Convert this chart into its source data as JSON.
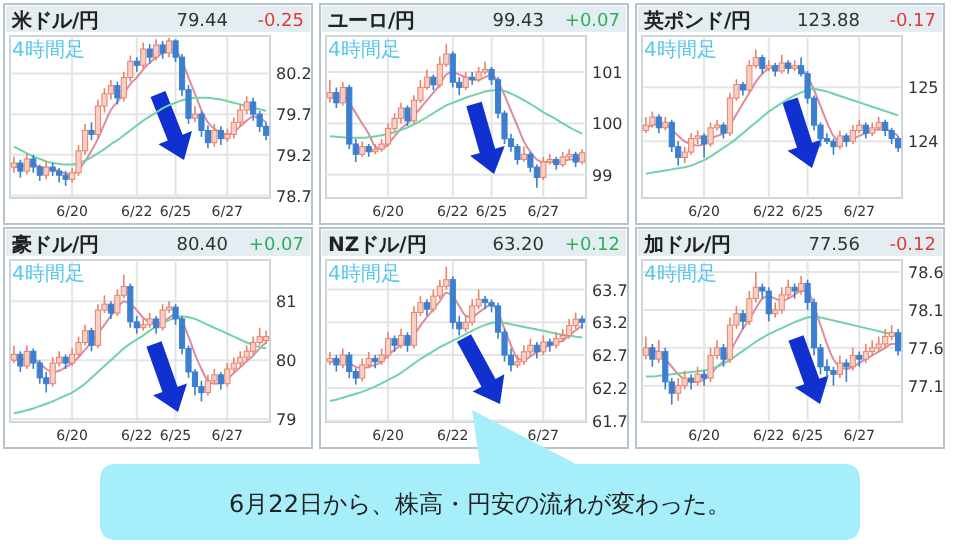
{
  "chart_data": [
    {
      "type": "candlestick",
      "title": "米ドル/円",
      "annotations": [
        "79.44",
        "-0.25",
        "4時間足"
      ],
      "grid": true,
      "ylim": [
        78.67,
        80.66
      ],
      "yticks": [
        78.7,
        79.2,
        79.7,
        80.2
      ],
      "categories": [
        null,
        null,
        null,
        null,
        null,
        null,
        null,
        null,
        null,
        "6/20",
        null,
        null,
        null,
        null,
        null,
        null,
        null,
        null,
        null,
        "6/22",
        null,
        null,
        null,
        null,
        null,
        "6/25",
        null,
        null,
        null,
        null,
        null,
        null,
        null,
        "6/27",
        null,
        null,
        null,
        null,
        null,
        null
      ],
      "ohlc": [
        [
          79.05,
          79.18,
          78.98,
          79.1
        ],
        [
          79.1,
          79.14,
          78.92,
          79.0
        ],
        [
          79.0,
          79.22,
          78.96,
          79.15
        ],
        [
          79.15,
          79.2,
          78.98,
          79.05
        ],
        [
          79.05,
          79.08,
          78.88,
          78.95
        ],
        [
          78.95,
          79.12,
          78.9,
          79.05
        ],
        [
          79.05,
          79.1,
          78.94,
          79.0
        ],
        [
          79.0,
          79.04,
          78.86,
          78.95
        ],
        [
          78.95,
          79.0,
          78.82,
          78.9
        ],
        [
          78.9,
          79.04,
          78.86,
          78.98
        ],
        [
          78.98,
          79.32,
          78.94,
          79.25
        ],
        [
          79.25,
          79.58,
          79.2,
          79.5
        ],
        [
          79.5,
          79.6,
          79.38,
          79.45
        ],
        [
          79.45,
          79.88,
          79.4,
          79.8
        ],
        [
          79.8,
          80.02,
          79.72,
          79.95
        ],
        [
          79.95,
          80.12,
          79.88,
          80.05
        ],
        [
          80.05,
          80.1,
          79.82,
          79.9
        ],
        [
          79.9,
          80.22,
          79.86,
          80.15
        ],
        [
          80.15,
          80.42,
          80.1,
          80.35
        ],
        [
          80.35,
          80.4,
          80.22,
          80.3
        ],
        [
          80.3,
          80.58,
          80.26,
          80.5
        ],
        [
          80.5,
          80.56,
          80.32,
          80.4
        ],
        [
          80.4,
          80.62,
          80.36,
          80.55
        ],
        [
          80.55,
          80.6,
          80.38,
          80.45
        ],
        [
          80.45,
          80.64,
          80.4,
          80.6
        ],
        [
          80.6,
          80.62,
          80.34,
          80.4
        ],
        [
          80.4,
          80.44,
          79.92,
          80.0
        ],
        [
          80.0,
          80.06,
          79.58,
          79.65
        ],
        [
          79.65,
          79.8,
          79.6,
          79.7
        ],
        [
          79.7,
          79.74,
          79.42,
          79.5
        ],
        [
          79.5,
          79.56,
          79.28,
          79.35
        ],
        [
          79.35,
          79.58,
          79.3,
          79.5
        ],
        [
          79.5,
          79.55,
          79.32,
          79.4
        ],
        [
          79.4,
          79.52,
          79.36,
          79.45
        ],
        [
          79.45,
          79.66,
          79.4,
          79.6
        ],
        [
          79.6,
          79.82,
          79.55,
          79.75
        ],
        [
          79.75,
          79.92,
          79.7,
          79.85
        ],
        [
          79.85,
          79.9,
          79.62,
          79.7
        ],
        [
          79.7,
          79.74,
          79.48,
          79.55
        ],
        [
          79.55,
          79.6,
          79.38,
          79.44
        ]
      ],
      "series": [
        {
          "type": "line",
          "color": "#dd8ca0",
          "values": [
            79.05,
            79.05,
            79.08,
            79.08,
            79.05,
            79.04,
            79.02,
            79.0,
            78.97,
            78.96,
            79.02,
            79.12,
            79.25,
            79.4,
            79.58,
            79.75,
            79.85,
            79.95,
            80.07,
            80.15,
            80.25,
            80.33,
            80.4,
            80.45,
            80.5,
            80.48,
            80.35,
            80.15,
            79.95,
            79.75,
            79.6,
            79.52,
            79.48,
            79.45,
            79.48,
            79.55,
            79.62,
            79.67,
            79.65,
            79.6
          ]
        },
        {
          "type": "line",
          "color": "#6fd3a6",
          "values": [
            79.3,
            79.26,
            79.22,
            79.18,
            79.15,
            79.12,
            79.1,
            79.09,
            79.08,
            79.08,
            79.1,
            79.13,
            79.17,
            79.22,
            79.27,
            79.33,
            79.38,
            79.44,
            79.5,
            79.56,
            79.62,
            79.67,
            79.72,
            79.77,
            79.81,
            79.84,
            79.87,
            79.89,
            79.9,
            79.9,
            79.9,
            79.89,
            79.88,
            79.86,
            79.84,
            79.82,
            79.8,
            79.78,
            79.76,
            79.74
          ]
        }
      ]
    },
    {
      "type": "candlestick",
      "title": "ユーロ/円",
      "annotations": [
        "99.43",
        "+0.07",
        "4時間足"
      ],
      "grid": true,
      "ylim": [
        98.55,
        101.7
      ],
      "yticks": [
        99,
        100,
        101
      ],
      "categories": [
        null,
        null,
        null,
        null,
        null,
        null,
        null,
        null,
        null,
        "6/20",
        null,
        null,
        null,
        null,
        null,
        null,
        null,
        null,
        null,
        "6/22",
        null,
        null,
        null,
        null,
        null,
        "6/25",
        null,
        null,
        null,
        null,
        null,
        null,
        null,
        "6/27",
        null,
        null,
        null,
        null,
        null,
        null
      ],
      "ohlc": [
        [
          100.5,
          100.85,
          100.4,
          100.6
        ],
        [
          100.6,
          100.7,
          100.3,
          100.4
        ],
        [
          100.4,
          100.8,
          100.35,
          100.7
        ],
        [
          100.7,
          100.75,
          99.5,
          99.6
        ],
        [
          99.6,
          99.7,
          99.25,
          99.4
        ],
        [
          99.4,
          99.65,
          99.35,
          99.55
        ],
        [
          99.55,
          99.6,
          99.35,
          99.45
        ],
        [
          99.45,
          99.6,
          99.4,
          99.5
        ],
        [
          99.5,
          99.7,
          99.45,
          99.6
        ],
        [
          99.6,
          100.0,
          99.55,
          99.9
        ],
        [
          99.9,
          100.2,
          99.85,
          100.1
        ],
        [
          100.1,
          100.4,
          100.0,
          100.3
        ],
        [
          100.3,
          100.35,
          99.95,
          100.05
        ],
        [
          100.05,
          100.55,
          100.0,
          100.45
        ],
        [
          100.45,
          100.85,
          100.4,
          100.7
        ],
        [
          100.7,
          101.05,
          100.65,
          100.9
        ],
        [
          100.9,
          100.95,
          100.65,
          100.75
        ],
        [
          100.75,
          101.3,
          100.7,
          101.15
        ],
        [
          101.15,
          101.55,
          101.1,
          101.35
        ],
        [
          101.35,
          101.4,
          100.7,
          100.8
        ],
        [
          100.8,
          100.9,
          100.55,
          100.7
        ],
        [
          100.7,
          101.0,
          100.65,
          100.9
        ],
        [
          100.9,
          101.0,
          100.75,
          100.85
        ],
        [
          100.85,
          101.1,
          100.8,
          101.0
        ],
        [
          101.0,
          101.2,
          100.95,
          101.05
        ],
        [
          101.05,
          101.1,
          100.75,
          100.85
        ],
        [
          100.85,
          100.9,
          100.1,
          100.2
        ],
        [
          100.2,
          100.25,
          99.6,
          99.7
        ],
        [
          99.7,
          99.8,
          99.45,
          99.55
        ],
        [
          99.55,
          99.6,
          99.2,
          99.3
        ],
        [
          99.3,
          99.55,
          99.25,
          99.4
        ],
        [
          99.4,
          99.45,
          99.05,
          99.15
        ],
        [
          99.15,
          99.2,
          98.75,
          98.95
        ],
        [
          98.95,
          99.35,
          98.9,
          99.25
        ],
        [
          99.25,
          99.4,
          99.2,
          99.3
        ],
        [
          99.3,
          99.35,
          99.1,
          99.2
        ],
        [
          99.2,
          99.45,
          99.15,
          99.35
        ],
        [
          99.35,
          99.5,
          99.3,
          99.4
        ],
        [
          99.4,
          99.45,
          99.15,
          99.25
        ],
        [
          99.25,
          99.5,
          99.2,
          99.43
        ]
      ],
      "series": [
        {
          "type": "line",
          "color": "#dd8ca0",
          "values": [
            100.5,
            100.5,
            100.55,
            100.4,
            100.2,
            100.0,
            99.8,
            99.55,
            99.5,
            99.6,
            99.75,
            99.9,
            100.0,
            100.15,
            100.3,
            100.45,
            100.6,
            100.75,
            100.95,
            101.0,
            100.95,
            100.9,
            100.85,
            100.85,
            100.9,
            100.95,
            100.8,
            100.55,
            100.25,
            99.95,
            99.65,
            99.45,
            99.3,
            99.25,
            99.25,
            99.25,
            99.25,
            99.3,
            99.3,
            99.33
          ]
        },
        {
          "type": "line",
          "color": "#6fd3a6",
          "values": [
            99.75,
            99.74,
            99.73,
            99.72,
            99.72,
            99.72,
            99.73,
            99.75,
            99.77,
            99.8,
            99.83,
            99.87,
            99.92,
            99.98,
            100.05,
            100.12,
            100.2,
            100.28,
            100.35,
            100.4,
            100.45,
            100.5,
            100.54,
            100.58,
            100.62,
            100.64,
            100.65,
            100.63,
            100.58,
            100.52,
            100.45,
            100.38,
            100.3,
            100.22,
            100.15,
            100.08,
            100.0,
            99.93,
            99.86,
            99.8
          ]
        }
      ]
    },
    {
      "type": "candlestick",
      "title": "英ポンド/円",
      "annotations": [
        "123.88",
        "-0.17",
        "4時間足"
      ],
      "grid": true,
      "ylim": [
        122.95,
        125.95
      ],
      "yticks": [
        124,
        125
      ],
      "categories": [
        null,
        null,
        null,
        null,
        null,
        null,
        null,
        null,
        null,
        "6/20",
        null,
        null,
        null,
        null,
        null,
        null,
        null,
        null,
        null,
        "6/22",
        null,
        null,
        null,
        null,
        null,
        "6/25",
        null,
        null,
        null,
        null,
        null,
        null,
        null,
        "6/27",
        null,
        null,
        null,
        null,
        null,
        null
      ],
      "ohlc": [
        [
          124.2,
          124.45,
          124.15,
          124.3
        ],
        [
          124.3,
          124.55,
          124.25,
          124.45
        ],
        [
          124.45,
          124.5,
          124.15,
          124.25
        ],
        [
          124.25,
          124.45,
          124.2,
          124.35
        ],
        [
          124.35,
          124.4,
          123.8,
          123.9
        ],
        [
          123.9,
          124.0,
          123.55,
          123.7
        ],
        [
          123.7,
          123.9,
          123.6,
          123.8
        ],
        [
          123.8,
          124.15,
          123.75,
          124.05
        ],
        [
          124.05,
          124.2,
          123.95,
          124.1
        ],
        [
          124.1,
          124.15,
          123.7,
          123.95
        ],
        [
          123.95,
          124.35,
          123.9,
          124.25
        ],
        [
          124.25,
          124.4,
          124.2,
          124.3
        ],
        [
          124.3,
          124.35,
          124.05,
          124.15
        ],
        [
          124.15,
          124.9,
          124.1,
          124.8
        ],
        [
          124.8,
          125.15,
          124.75,
          125.05
        ],
        [
          125.05,
          125.1,
          124.85,
          124.95
        ],
        [
          124.95,
          125.5,
          124.9,
          125.4
        ],
        [
          125.4,
          125.7,
          125.35,
          125.55
        ],
        [
          125.55,
          125.6,
          125.25,
          125.35
        ],
        [
          125.35,
          125.5,
          125.3,
          125.4
        ],
        [
          125.4,
          125.45,
          125.2,
          125.3
        ],
        [
          125.3,
          125.6,
          125.25,
          125.45
        ],
        [
          125.45,
          125.5,
          125.25,
          125.35
        ],
        [
          125.35,
          125.5,
          125.3,
          125.4
        ],
        [
          125.4,
          125.55,
          125.2,
          125.25
        ],
        [
          125.25,
          125.3,
          124.7,
          124.8
        ],
        [
          124.8,
          124.85,
          124.2,
          124.3
        ],
        [
          124.3,
          124.35,
          123.9,
          124.05
        ],
        [
          124.05,
          124.15,
          123.95,
          124.0
        ],
        [
          124.0,
          124.05,
          123.75,
          123.9
        ],
        [
          123.9,
          124.2,
          123.85,
          124.1
        ],
        [
          124.1,
          124.15,
          123.9,
          124.0
        ],
        [
          124.0,
          124.3,
          123.95,
          124.2
        ],
        [
          124.2,
          124.4,
          124.15,
          124.3
        ],
        [
          124.3,
          124.35,
          124.05,
          124.15
        ],
        [
          124.15,
          124.35,
          124.1,
          124.25
        ],
        [
          124.25,
          124.45,
          124.2,
          124.35
        ],
        [
          124.35,
          124.4,
          124.1,
          124.2
        ],
        [
          124.2,
          124.25,
          123.95,
          124.05
        ],
        [
          124.05,
          124.1,
          123.8,
          123.88
        ]
      ],
      "series": [
        {
          "type": "line",
          "color": "#dd8ca0",
          "values": [
            124.25,
            124.3,
            124.32,
            124.32,
            124.22,
            124.1,
            124.0,
            123.95,
            123.92,
            123.95,
            124.05,
            124.1,
            124.15,
            124.3,
            124.5,
            124.7,
            124.9,
            125.1,
            125.25,
            125.35,
            125.38,
            125.4,
            125.38,
            125.38,
            125.35,
            125.2,
            124.95,
            124.65,
            124.35,
            124.1,
            124.0,
            124.0,
            124.05,
            124.1,
            124.15,
            124.2,
            124.22,
            124.22,
            124.18,
            124.1
          ]
        },
        {
          "type": "line",
          "color": "#6fd3a6",
          "values": [
            123.4,
            123.42,
            123.44,
            123.46,
            123.48,
            123.5,
            123.52,
            123.55,
            123.6,
            123.65,
            123.72,
            123.8,
            123.88,
            123.96,
            124.05,
            124.15,
            124.25,
            124.35,
            124.45,
            124.55,
            124.63,
            124.71,
            124.78,
            124.85,
            124.9,
            124.95,
            124.97,
            124.95,
            124.92,
            124.88,
            124.84,
            124.8,
            124.76,
            124.72,
            124.68,
            124.64,
            124.6,
            124.56,
            124.52,
            124.48
          ]
        }
      ]
    },
    {
      "type": "candlestick",
      "title": "豪ドル/円",
      "annotations": [
        "80.40",
        "+0.07",
        "4時間足"
      ],
      "grid": true,
      "ylim": [
        78.95,
        81.7
      ],
      "yticks": [
        79,
        80,
        81
      ],
      "categories": [
        null,
        null,
        null,
        null,
        null,
        null,
        null,
        null,
        null,
        "6/20",
        null,
        null,
        null,
        null,
        null,
        null,
        null,
        null,
        null,
        "6/22",
        null,
        null,
        null,
        null,
        null,
        "6/25",
        null,
        null,
        null,
        null,
        null,
        null,
        null,
        "6/27",
        null,
        null,
        null,
        null,
        null,
        null
      ],
      "ohlc": [
        [
          80.0,
          80.25,
          79.95,
          80.1
        ],
        [
          80.1,
          80.15,
          79.8,
          79.9
        ],
        [
          79.9,
          80.25,
          79.85,
          80.15
        ],
        [
          80.15,
          80.2,
          79.85,
          79.95
        ],
        [
          79.95,
          80.0,
          79.6,
          79.7
        ],
        [
          79.7,
          79.8,
          79.45,
          79.6
        ],
        [
          79.6,
          80.05,
          79.55,
          79.95
        ],
        [
          79.95,
          80.15,
          79.9,
          80.05
        ],
        [
          80.05,
          80.1,
          79.85,
          79.95
        ],
        [
          79.95,
          80.2,
          79.9,
          80.1
        ],
        [
          80.1,
          80.4,
          80.05,
          80.3
        ],
        [
          80.3,
          80.6,
          80.25,
          80.5
        ],
        [
          80.5,
          80.55,
          80.15,
          80.25
        ],
        [
          80.25,
          80.95,
          80.2,
          80.85
        ],
        [
          80.85,
          81.1,
          80.8,
          80.95
        ],
        [
          80.95,
          81.0,
          80.7,
          80.8
        ],
        [
          80.8,
          81.2,
          80.75,
          81.1
        ],
        [
          81.1,
          81.45,
          81.05,
          81.25
        ],
        [
          81.25,
          81.3,
          80.55,
          80.65
        ],
        [
          80.65,
          80.75,
          80.45,
          80.55
        ],
        [
          80.55,
          80.7,
          80.5,
          80.6
        ],
        [
          80.6,
          80.8,
          80.55,
          80.7
        ],
        [
          80.7,
          80.75,
          80.45,
          80.55
        ],
        [
          80.55,
          80.95,
          80.5,
          80.85
        ],
        [
          80.85,
          81.0,
          80.8,
          80.9
        ],
        [
          80.9,
          80.95,
          80.6,
          80.7
        ],
        [
          80.7,
          80.75,
          80.1,
          80.2
        ],
        [
          80.2,
          80.25,
          79.7,
          79.8
        ],
        [
          79.8,
          79.85,
          79.4,
          79.55
        ],
        [
          79.55,
          79.65,
          79.3,
          79.45
        ],
        [
          79.45,
          79.75,
          79.4,
          79.65
        ],
        [
          79.65,
          79.85,
          79.6,
          79.75
        ],
        [
          79.75,
          79.8,
          79.5,
          79.6
        ],
        [
          79.6,
          79.95,
          79.55,
          79.85
        ],
        [
          79.85,
          80.05,
          79.8,
          79.95
        ],
        [
          79.95,
          80.15,
          79.9,
          80.05
        ],
        [
          80.05,
          80.25,
          80.0,
          80.15
        ],
        [
          80.15,
          80.4,
          80.1,
          80.3
        ],
        [
          80.3,
          80.55,
          80.25,
          80.4
        ],
        [
          80.33,
          80.5,
          80.28,
          80.4
        ]
      ],
      "series": [
        {
          "type": "line",
          "color": "#dd8ca0",
          "values": [
            80.0,
            80.02,
            80.03,
            80.02,
            79.95,
            79.85,
            79.8,
            79.82,
            79.88,
            79.95,
            80.05,
            80.18,
            80.3,
            80.45,
            80.6,
            80.75,
            80.88,
            81.0,
            80.95,
            80.85,
            80.72,
            80.65,
            80.62,
            80.65,
            80.72,
            80.78,
            80.65,
            80.4,
            80.1,
            79.85,
            79.65,
            79.6,
            79.62,
            79.68,
            79.78,
            79.88,
            79.98,
            80.08,
            80.2,
            80.3
          ]
        },
        {
          "type": "line",
          "color": "#6fd3a6",
          "values": [
            79.1,
            79.12,
            79.15,
            79.18,
            79.22,
            79.26,
            79.3,
            79.35,
            79.4,
            79.45,
            79.52,
            79.6,
            79.7,
            79.8,
            79.9,
            80.0,
            80.1,
            80.2,
            80.28,
            80.35,
            80.42,
            80.5,
            80.57,
            80.63,
            80.68,
            80.72,
            80.74,
            80.73,
            80.7,
            80.65,
            80.6,
            80.55,
            80.5,
            80.45,
            80.4,
            80.35,
            80.3,
            80.26,
            80.22,
            80.2
          ]
        }
      ]
    },
    {
      "type": "candlestick",
      "title": "NZドル/円",
      "annotations": [
        "63.20",
        "+0.12",
        "4時間足"
      ],
      "grid": true,
      "ylim": [
        61.68,
        64.15
      ],
      "yticks": [
        61.7,
        62.2,
        62.7,
        63.2,
        63.7
      ],
      "categories": [
        null,
        null,
        null,
        null,
        null,
        null,
        null,
        null,
        null,
        "6/20",
        null,
        null,
        null,
        null,
        null,
        null,
        null,
        null,
        null,
        "6/22",
        null,
        null,
        null,
        null,
        null,
        null,
        null,
        null,
        null,
        null,
        null,
        null,
        null,
        "6/27",
        null,
        null,
        null,
        null,
        null,
        null
      ],
      "ohlc": [
        [
          62.6,
          62.75,
          62.55,
          62.65
        ],
        [
          62.65,
          62.7,
          62.45,
          62.55
        ],
        [
          62.55,
          62.8,
          62.5,
          62.7
        ],
        [
          62.7,
          62.75,
          62.35,
          62.45
        ],
        [
          62.45,
          62.5,
          62.25,
          62.35
        ],
        [
          62.35,
          62.65,
          62.3,
          62.55
        ],
        [
          62.55,
          62.75,
          62.5,
          62.65
        ],
        [
          62.65,
          62.7,
          62.5,
          62.6
        ],
        [
          62.6,
          62.8,
          62.55,
          62.7
        ],
        [
          62.7,
          63.05,
          62.65,
          62.95
        ],
        [
          62.95,
          63.0,
          62.75,
          62.85
        ],
        [
          62.85,
          63.1,
          62.8,
          63.0
        ],
        [
          63.0,
          63.05,
          62.75,
          62.85
        ],
        [
          62.85,
          63.45,
          62.8,
          63.35
        ],
        [
          63.35,
          63.6,
          63.3,
          63.5
        ],
        [
          63.5,
          63.55,
          63.3,
          63.4
        ],
        [
          63.4,
          63.7,
          63.35,
          63.6
        ],
        [
          63.6,
          63.85,
          63.55,
          63.75
        ],
        [
          63.75,
          64.05,
          63.7,
          63.85
        ],
        [
          63.85,
          63.9,
          63.1,
          63.2
        ],
        [
          63.2,
          63.3,
          63.0,
          63.1
        ],
        [
          63.1,
          63.3,
          63.05,
          63.2
        ],
        [
          63.2,
          63.55,
          63.15,
          63.45
        ],
        [
          63.45,
          63.7,
          63.4,
          63.55
        ],
        [
          63.55,
          63.6,
          63.4,
          63.5
        ],
        [
          63.5,
          63.55,
          63.35,
          63.45
        ],
        [
          63.45,
          63.5,
          62.95,
          63.05
        ],
        [
          63.05,
          63.1,
          62.6,
          62.7
        ],
        [
          62.7,
          62.8,
          62.45,
          62.55
        ],
        [
          62.55,
          62.7,
          62.5,
          62.6
        ],
        [
          62.6,
          62.85,
          62.55,
          62.75
        ],
        [
          62.75,
          62.95,
          62.7,
          62.85
        ],
        [
          62.85,
          62.9,
          62.65,
          62.75
        ],
        [
          62.75,
          63.0,
          62.7,
          62.9
        ],
        [
          62.9,
          62.95,
          62.75,
          62.85
        ],
        [
          62.85,
          63.05,
          62.8,
          62.95
        ],
        [
          62.95,
          63.1,
          62.9,
          63.0
        ],
        [
          63.0,
          63.25,
          62.95,
          63.15
        ],
        [
          63.15,
          63.35,
          63.1,
          63.25
        ],
        [
          63.25,
          63.3,
          63.1,
          63.2
        ]
      ],
      "series": [
        {
          "type": "line",
          "color": "#dd8ca0",
          "values": [
            62.6,
            62.6,
            62.62,
            62.58,
            62.52,
            62.5,
            62.52,
            62.55,
            62.6,
            62.7,
            62.78,
            62.85,
            62.9,
            63.0,
            63.15,
            63.28,
            63.4,
            63.52,
            63.65,
            63.6,
            63.45,
            63.3,
            63.28,
            63.35,
            63.42,
            63.48,
            63.35,
            63.1,
            62.85,
            62.65,
            62.62,
            62.68,
            62.75,
            62.8,
            62.85,
            62.88,
            62.92,
            63.0,
            63.08,
            63.15
          ]
        },
        {
          "type": "line",
          "color": "#6fd3a6",
          "values": [
            62.0,
            62.02,
            62.05,
            62.08,
            62.11,
            62.14,
            62.18,
            62.22,
            62.27,
            62.32,
            62.37,
            62.43,
            62.5,
            62.57,
            62.64,
            62.7,
            62.76,
            62.82,
            62.87,
            62.92,
            62.97,
            63.02,
            63.07,
            63.12,
            63.16,
            63.19,
            63.2,
            63.19,
            63.17,
            63.15,
            63.13,
            63.11,
            63.09,
            63.07,
            63.05,
            63.03,
            63.01,
            63.0,
            62.98,
            62.97
          ]
        }
      ]
    },
    {
      "type": "candlestick",
      "title": "加ドル/円",
      "annotations": [
        "77.56",
        "-0.12",
        "4時間足"
      ],
      "grid": true,
      "ylim": [
        76.62,
        78.76
      ],
      "yticks": [
        77.1,
        77.6,
        78.1,
        78.6
      ],
      "categories": [
        null,
        null,
        null,
        null,
        null,
        null,
        null,
        null,
        null,
        "6/20",
        null,
        null,
        null,
        null,
        null,
        null,
        null,
        null,
        null,
        "6/22",
        null,
        null,
        null,
        null,
        null,
        "6/25",
        null,
        null,
        null,
        null,
        null,
        null,
        null,
        "6/27",
        null,
        null,
        null,
        null,
        null,
        null
      ],
      "ohlc": [
        [
          77.5,
          77.75,
          77.45,
          77.6
        ],
        [
          77.6,
          77.65,
          77.35,
          77.45
        ],
        [
          77.45,
          77.7,
          77.4,
          77.55
        ],
        [
          77.55,
          77.6,
          77.05,
          77.15
        ],
        [
          77.15,
          77.2,
          76.85,
          77.0
        ],
        [
          77.0,
          77.2,
          76.9,
          77.1
        ],
        [
          77.1,
          77.3,
          77.05,
          77.2
        ],
        [
          77.2,
          77.25,
          77.05,
          77.15
        ],
        [
          77.15,
          77.35,
          77.1,
          77.25
        ],
        [
          77.25,
          77.3,
          77.1,
          77.2
        ],
        [
          77.2,
          77.6,
          77.15,
          77.5
        ],
        [
          77.5,
          77.7,
          77.45,
          77.6
        ],
        [
          77.6,
          77.65,
          77.35,
          77.45
        ],
        [
          77.45,
          78.0,
          77.4,
          77.9
        ],
        [
          77.9,
          78.15,
          77.85,
          78.05
        ],
        [
          78.05,
          78.1,
          77.85,
          77.95
        ],
        [
          77.95,
          78.35,
          77.9,
          78.25
        ],
        [
          78.25,
          78.6,
          78.2,
          78.4
        ],
        [
          78.4,
          78.45,
          78.25,
          78.35
        ],
        [
          78.35,
          78.4,
          77.95,
          78.05
        ],
        [
          78.05,
          78.2,
          78.0,
          78.1
        ],
        [
          78.1,
          78.4,
          78.05,
          78.3
        ],
        [
          78.3,
          78.5,
          78.25,
          78.4
        ],
        [
          78.4,
          78.45,
          78.25,
          78.35
        ],
        [
          78.35,
          78.55,
          78.3,
          78.45
        ],
        [
          78.45,
          78.5,
          78.1,
          78.2
        ],
        [
          78.2,
          78.25,
          77.5,
          77.6
        ],
        [
          77.6,
          77.65,
          77.25,
          77.35
        ],
        [
          77.35,
          77.45,
          77.2,
          77.3
        ],
        [
          77.3,
          77.35,
          77.1,
          77.25
        ],
        [
          77.25,
          77.5,
          77.2,
          77.4
        ],
        [
          77.4,
          77.45,
          77.15,
          77.35
        ],
        [
          77.35,
          77.6,
          77.3,
          77.5
        ],
        [
          77.5,
          77.55,
          77.35,
          77.45
        ],
        [
          77.45,
          77.65,
          77.4,
          77.55
        ],
        [
          77.55,
          77.7,
          77.5,
          77.6
        ],
        [
          77.6,
          77.75,
          77.55,
          77.65
        ],
        [
          77.65,
          77.85,
          77.6,
          77.75
        ],
        [
          77.75,
          77.9,
          77.7,
          77.8
        ],
        [
          77.8,
          77.85,
          77.5,
          77.56
        ]
      ],
      "series": [
        {
          "type": "line",
          "color": "#dd8ca0",
          "values": [
            77.55,
            77.55,
            77.55,
            77.45,
            77.35,
            77.25,
            77.18,
            77.15,
            77.15,
            77.18,
            77.25,
            77.35,
            77.42,
            77.55,
            77.7,
            77.85,
            77.98,
            78.12,
            78.25,
            78.28,
            78.25,
            78.22,
            78.25,
            78.3,
            78.35,
            78.35,
            78.15,
            77.9,
            77.65,
            77.45,
            77.35,
            77.32,
            77.35,
            77.4,
            77.45,
            77.5,
            77.55,
            77.6,
            77.65,
            77.65
          ]
        },
        {
          "type": "line",
          "color": "#6fd3a6",
          "values": [
            77.22,
            77.22,
            77.23,
            77.24,
            77.25,
            77.26,
            77.27,
            77.28,
            77.29,
            77.3,
            77.32,
            77.35,
            77.39,
            77.44,
            77.5,
            77.56,
            77.62,
            77.68,
            77.73,
            77.78,
            77.82,
            77.86,
            77.9,
            77.94,
            77.97,
            78.0,
            78.01,
            78.0,
            77.98,
            77.96,
            77.94,
            77.92,
            77.9,
            77.88,
            77.86,
            77.84,
            77.82,
            77.8,
            77.78,
            77.76
          ]
        }
      ]
    },
    {
      "type": "other",
      "annotations": [
        "6月22日から、株高・円安の流れが変わった。"
      ]
    }
  ]
}
